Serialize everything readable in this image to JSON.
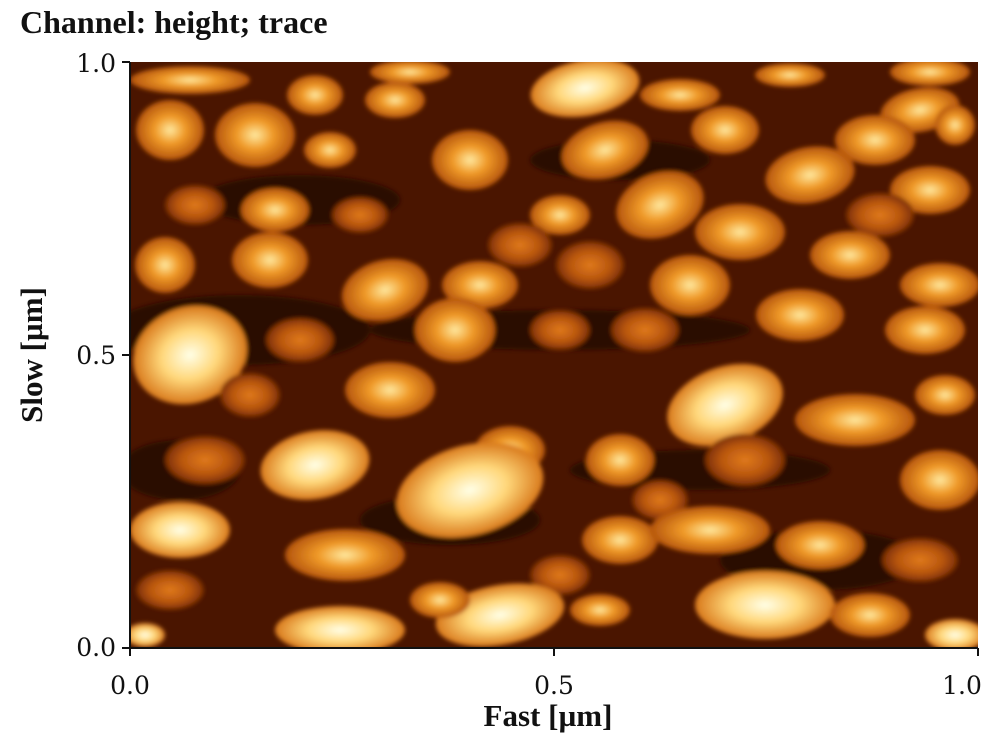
{
  "title": "Channel: height; trace",
  "x_axis": {
    "label": "Fast [µm]",
    "ticks": [
      "0.0",
      "0.5",
      "1.0"
    ],
    "range": [
      0.0,
      1.0
    ]
  },
  "y_axis": {
    "label": "Slow [µm]",
    "ticks": [
      "0.0",
      "0.5",
      "1.0"
    ],
    "range": [
      0.0,
      1.0
    ]
  },
  "image": {
    "kind": "AFM height map",
    "colormap": [
      "#1a0500",
      "#4a1500",
      "#a74a0a",
      "#e8901e",
      "#fff0b8"
    ]
  }
}
